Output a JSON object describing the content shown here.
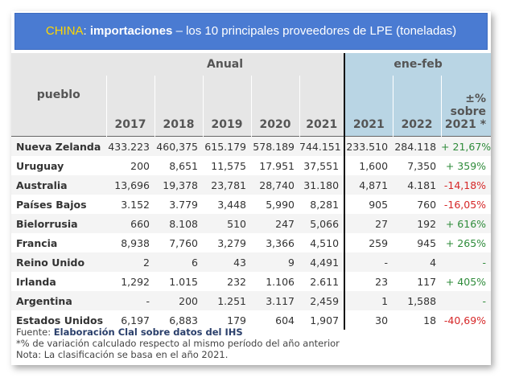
{
  "title": {
    "country": "CHINA",
    "colon": ":",
    "bold_part": "importaciones",
    "rest": " – los 10 principales proveedores de LPE (toneladas)"
  },
  "header": {
    "pueblo": "pueblo",
    "anual": "Anual",
    "enefeb": "ene-feb",
    "years": [
      "2017",
      "2018",
      "2019",
      "2020",
      "2021"
    ],
    "ef_years": [
      "2021",
      "2022"
    ],
    "pct_label": "±% sobre 2021 *"
  },
  "rows": [
    {
      "country": "Nueva Zelanda",
      "v2017": "433.223",
      "v2018": "460,375",
      "v2019": "615.179",
      "v2020": "578.189",
      "v2021": "744.151",
      "ef2021": "233.510",
      "ef2022": "284.118",
      "pct": "+ 21,67%",
      "dir": "pos"
    },
    {
      "country": "Uruguay",
      "v2017": "200",
      "v2018": "8,651",
      "v2019": "11,575",
      "v2020": "17.951",
      "v2021": "37,551",
      "ef2021": "1,600",
      "ef2022": "7,350",
      "pct": "+ 359%",
      "dir": "pos"
    },
    {
      "country": "Australia",
      "v2017": "13,696",
      "v2018": "19,378",
      "v2019": "23,781",
      "v2020": "28,740",
      "v2021": "31.180",
      "ef2021": "4,871",
      "ef2022": "4.181",
      "pct": "-14,18%",
      "dir": "neg"
    },
    {
      "country": "Países Bajos",
      "v2017": "3.152",
      "v2018": "3.779",
      "v2019": "3,448",
      "v2020": "5,990",
      "v2021": "8,281",
      "ef2021": "905",
      "ef2022": "760",
      "pct": "-16,05%",
      "dir": "neg"
    },
    {
      "country": "Bielorrusia",
      "v2017": "660",
      "v2018": "8.108",
      "v2019": "510",
      "v2020": "247",
      "v2021": "5,066",
      "ef2021": "27",
      "ef2022": "192",
      "pct": "+ 616%",
      "dir": "pos"
    },
    {
      "country": "Francia",
      "v2017": "8,938",
      "v2018": "7,760",
      "v2019": "3,279",
      "v2020": "3,366",
      "v2021": "4,510",
      "ef2021": "259",
      "ef2022": "945",
      "pct": "+ 265%",
      "dir": "pos"
    },
    {
      "country": "Reino Unido",
      "v2017": "2",
      "v2018": "6",
      "v2019": "43",
      "v2020": "9",
      "v2021": "4,491",
      "ef2021": "-",
      "ef2022": "4",
      "pct": "-",
      "dir": "pos"
    },
    {
      "country": "Irlanda",
      "v2017": "1,292",
      "v2018": "1.015",
      "v2019": "232",
      "v2020": "1.106",
      "v2021": "2.611",
      "ef2021": "23",
      "ef2022": "117",
      "pct": "+ 405%",
      "dir": "pos"
    },
    {
      "country": "Argentina",
      "v2017": "-",
      "v2018": "200",
      "v2019": "1.251",
      "v2020": "3.117",
      "v2021": "2,459",
      "ef2021": "1",
      "ef2022": "1,588",
      "pct": "-",
      "dir": "pos"
    },
    {
      "country": "Estados Unidos",
      "v2017": "6,197",
      "v2018": "6,883",
      "v2019": "179",
      "v2020": "604",
      "v2021": "1,907",
      "ef2021": "30",
      "ef2022": "18",
      "pct": "-40,69%",
      "dir": "neg"
    }
  ],
  "footer": {
    "source_prefix": "Fuente: ",
    "source": "Elaboración Clal sobre datos del IHS",
    "note1": "*% de variación calculado respecto al mismo período del año anterior",
    "note2": "Nota: La clasificación se basa en el año 2021."
  },
  "colors": {
    "banner": "#4a7bd2",
    "country_highlight": "#ffd700",
    "header_left": "#e6e6e6",
    "header_right": "#b9d5e4",
    "positive": "#2e8b3a",
    "negative": "#d62728"
  }
}
